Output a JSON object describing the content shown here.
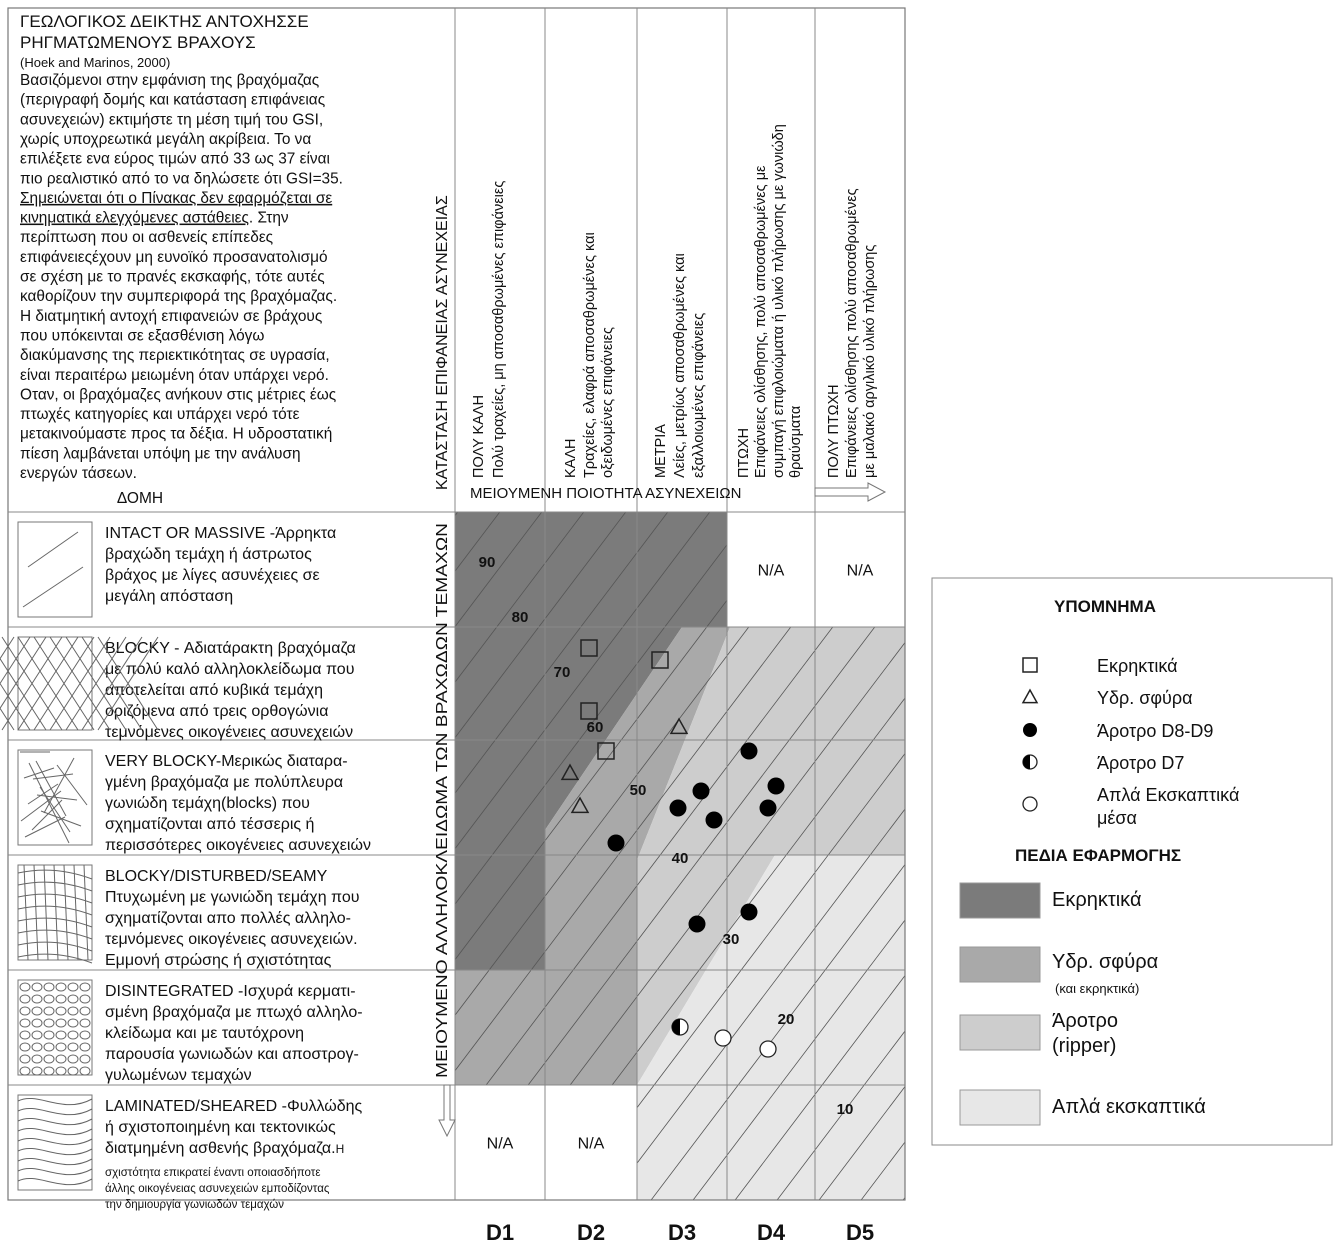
{
  "header": {
    "title_lines": [
      "ΓΕΩΛΟΓΙΚΟΣ ΔΕΙΚΤΗΣ ΑΝΤΟΧΗΣΣΕ",
      "ΡΗΓΜΑΤΩΜΕΝΟΥΣ ΒΡΑΧΟΥΣ"
    ],
    "citation": "(Hoek and Marinos, 2000)",
    "paragraph": [
      [
        {
          "text": "Βασιζόμενοι στην εμφάνιση της βραχόμαζας",
          "underline": false
        }
      ],
      [
        {
          "text": "(περιγραφή δομής και κατάσταση επιφάνειας",
          "underline": false
        }
      ],
      [
        {
          "text": "ασυνεχειών) εκτιμήστε τη μέση τιμή του GSI,",
          "underline": false
        }
      ],
      [
        {
          "text": "χωρίς υποχρεωτικά μεγάλη ακρίβεια. Το να",
          "underline": false
        }
      ],
      [
        {
          "text": "επιλέξετε ενα εύρος τιμών από 33 ως 37 είναι",
          "underline": false
        }
      ],
      [
        {
          "text": "πιο ρεαλιστικό από το να δηλώσετε ότι GSI=35.",
          "underline": false
        }
      ],
      [
        {
          "text": "Σημειώνεται ότι ο Πίνακας δεν εφαρμόζεται σε",
          "underline": true
        }
      ],
      [
        {
          "text": "κινηματικά ελεγχόμενες αστάθειες",
          "underline": true
        },
        {
          "text": ". Στην",
          "underline": false
        }
      ],
      [
        {
          "text": "περίπτωση που οι ασθενείς επίπεδες",
          "underline": false
        }
      ],
      [
        {
          "text": "επιφάνειεςέχουν μη ευνοϊκό προσανατολισμό",
          "underline": false
        }
      ],
      [
        {
          "text": "σε σχέση με το πρανές εκσκαφής, τότε αυτές",
          "underline": false
        }
      ],
      [
        {
          "text": "καθορίζουν την συμπεριφορά της βραχόμαζας.",
          "underline": false
        }
      ],
      [
        {
          "text": "Η διατμητική αντοχή επιφανειών σε βράχους",
          "underline": false
        }
      ],
      [
        {
          "text": "που υπόκεινται σε εξασθένιση λόγω",
          "underline": false
        }
      ],
      [
        {
          "text": "διακύμανσης της περιεκτικότητας σε υγρασία,",
          "underline": false
        }
      ],
      [
        {
          "text": "είναι περαιτέρω μειωμένη όταν υπάρχει νερό.",
          "underline": false
        }
      ],
      [
        {
          "text": "Οταν, οι βραχόμαζες ανήκουν στις μέτριες έως",
          "underline": false
        }
      ],
      [
        {
          "text": "πτωχές κατηγορίες και υπάρχει νερό τότε",
          "underline": false
        }
      ],
      [
        {
          "text": "μετακινούμαστε  προς τα δέξια. Η υδροστατική",
          "underline": false
        }
      ],
      [
        {
          "text": "πίεση λαμβάνεται υπόψη με την ανάλυση",
          "underline": false
        }
      ],
      [
        {
          "text": "ενεργών τάσεων.",
          "underline": false
        }
      ]
    ],
    "structure_label": "ΔΟΜΗ",
    "surface_axis": "ΚΑΤΑΣΤΑΣΗ ΕΠΙΦΑΝΕΙΑΣ ΑΣΥΝΕΧΕΙΑΣ",
    "quality_arrow": "ΜΕΙΟΥΜΕΝΗ ΠΟΙΟΤΗΤΑ ΑΣΥΝΕΧΕΙΩΝ",
    "interlock_axis": "ΜΕΙΟΥΜΕΝΟ ΑΛΛΗΛΟΚΛΕΙΔΩΜΑ ΤΩΝ ΒΡΑΧΩΔΩΝ ΤΕΜΑΧΩΝ"
  },
  "columns": [
    {
      "id": "D1",
      "lines": [
        "ΠΟΛΥ ΚΑΛΗ",
        "Πολύ τραχείες, μη αποσαθρωμένες επιφάνειες"
      ]
    },
    {
      "id": "D2",
      "lines": [
        "ΚΑΛΗ",
        "Τραχείες, ελαφρά αποσαθρωμένες και",
        "οξειδωμένες επιφάνειες"
      ]
    },
    {
      "id": "D3",
      "lines": [
        "ΜΕΤΡΙΑ",
        "Λείες, μετρίως αποσαθρωμένες και",
        "εξαλλοιωμένες επιφάνειες"
      ]
    },
    {
      "id": "D4",
      "lines": [
        "ΠΤΩΧΗ",
        "Επιφάνειες ολίσθησης, πολύ αποσαθρωμένες με",
        "συμπαγή επιφλοιώματα ή υλικό πλήρωσης με γωνιώδη",
        "θραύσματα"
      ]
    },
    {
      "id": "D5",
      "lines": [
        "ΠΟΛΥ ΠΤΩΧΗ",
        "Επιφάνειες ολίσθησης πολύ αποσαθρωμένες",
        "με μαλακό αργιλικό υλικό πλήρωσης"
      ]
    }
  ],
  "rows": [
    {
      "lines": [
        "INTACT OR MASSIVE -Άρρηκτα",
        "βραχώδη τεμάχη ή άστρωτος",
        "βράχος με λίγες ασυνέχειες σε",
        "μεγάλη απόσταση"
      ],
      "cells": [
        null,
        null,
        null,
        "N/A",
        "N/A"
      ]
    },
    {
      "lines": [
        "BLOCKY - Αδιατάρακτη βραχόμαζα",
        "με πολύ καλό αλληλοκλείδωμα που",
        "αποτελείται από κυβικά τεμάχη",
        "οριζόμενα από τρεις ορθογώνια",
        "τεμνόμενες οικογένειες ασυνεχειών"
      ],
      "cells": [
        null,
        null,
        null,
        null,
        null
      ]
    },
    {
      "lines": [
        "VERY BLOCKY-Μερικώς διαταρα-",
        "γμένη βραχόμαζα με πολύπλευρα",
        " γωνιώδη τεμάχη(blocks) που",
        "σχηματίζονται από τέσσερις ή",
        "περισσότερες οικογένειες ασυνεχειών"
      ],
      "cells": [
        null,
        null,
        null,
        null,
        null
      ]
    },
    {
      "lines": [
        "BLOCKY/DISTURBED/SEAMY",
        "Πτυχωμένη με γωνιώδη τεμάχη που",
        "σχηματίζονται απο πολλές αλληλο-",
        "τεμνόμενες οικογένειες ασυνεχειών.",
        "Εμμονή στρώσης ή σχιστότητας"
      ],
      "cells": [
        null,
        null,
        null,
        null,
        null
      ]
    },
    {
      "lines": [
        "DISINTEGRATED -Ισχυρά κερματι-",
        "σμένη βραχόμαζα με πτωχό αλληλο-",
        "κλείδωμα και με ταυτόχρονη",
        "παρουσία γωνιωδών και αποστρογ-",
        "γυλωμένων τεμαχών"
      ],
      "cells": [
        null,
        null,
        null,
        null,
        null
      ]
    },
    {
      "lines": [
        "LAMINATED/SHEARED -Φυλλώδης",
        "ή σχιστοποιημένη και τεκτονικώς",
        "διατμημένη ασθενής βραχόμαζα."
      ],
      "small_lines": [
        "Η",
        "σχιστότητα επικρατεί έναντι οποιασδήποτε",
        "άλλης οικογένειας ασυνεχειών εμποδίζοντας",
        "την δημιουργία γωνιωδών τεμαχών"
      ],
      "cells": [
        "N/A",
        "N/A",
        null,
        null,
        null
      ]
    }
  ],
  "gsi_contours": [
    90,
    80,
    70,
    60,
    50,
    40,
    30,
    20,
    10
  ],
  "legend": {
    "title": "ΥΠΟΜΝΗΜΑ",
    "symbols": [
      {
        "lines": [
          "Εκρηκτικά"
        ]
      },
      {
        "lines": [
          "Υδρ. σφύρα"
        ]
      },
      {
        "lines": [
          "Άροτρο D8-D9"
        ]
      },
      {
        "lines": [
          "Άροτρο D7"
        ]
      },
      {
        "lines": [
          "Απλά Εκσκαπτικά",
          "μέσα"
        ]
      }
    ],
    "zones_title": "ΠΕΔΙΑ ΕΦΑΡΜΟΓΗΣ",
    "zones": [
      {
        "lines": [
          "Εκρηκτικά"
        ],
        "color": "#7b7b7b"
      },
      {
        "lines": [
          "Υδρ. σφύρα"
        ],
        "note": "(και εκρηκτικά)",
        "color": "#a9a9a9"
      },
      {
        "lines": [
          "Άροτρο",
          "(ripper)"
        ],
        "color": "#cdcdcd"
      },
      {
        "lines": [
          "Απλά εκσκαπτικά"
        ],
        "color": "#e7e7e7"
      }
    ]
  }
}
